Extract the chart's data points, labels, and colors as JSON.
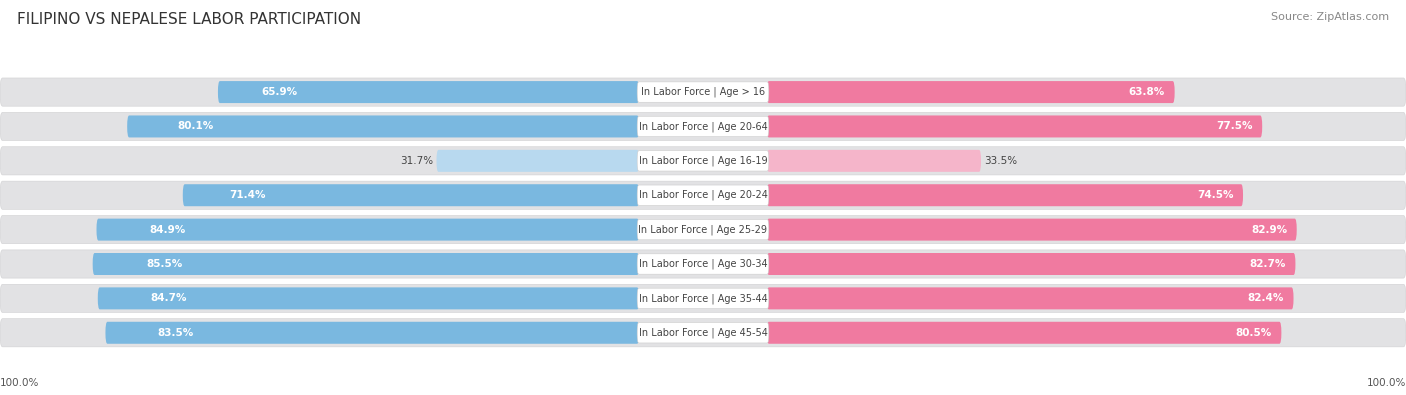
{
  "title": "FILIPINO VS NEPALESE LABOR PARTICIPATION",
  "source": "Source: ZipAtlas.com",
  "categories": [
    "In Labor Force | Age > 16",
    "In Labor Force | Age 20-64",
    "In Labor Force | Age 16-19",
    "In Labor Force | Age 20-24",
    "In Labor Force | Age 25-29",
    "In Labor Force | Age 30-34",
    "In Labor Force | Age 35-44",
    "In Labor Force | Age 45-54"
  ],
  "filipino_values": [
    65.9,
    80.1,
    31.7,
    71.4,
    84.9,
    85.5,
    84.7,
    83.5
  ],
  "nepalese_values": [
    63.8,
    77.5,
    33.5,
    74.5,
    82.9,
    82.7,
    82.4,
    80.5
  ],
  "max_value": 100.0,
  "filipino_color_dark": "#7ab8e0",
  "filipino_color_light": "#b8d9ef",
  "nepalese_color_dark": "#f07aa0",
  "nepalese_color_light": "#f5b5ca",
  "bg_color": "#f5f5f5",
  "row_bg_light": "#ededee",
  "row_bg_medium": "#e2e2e4",
  "title_color": "#333333",
  "source_color": "#888888",
  "label_text_color": "#555555",
  "white_text": "#ffffff",
  "title_fontsize": 11,
  "source_fontsize": 8,
  "bar_label_fontsize": 7.5,
  "category_fontsize": 7,
  "legend_fontsize": 8.5,
  "axis_label_fontsize": 7.5
}
